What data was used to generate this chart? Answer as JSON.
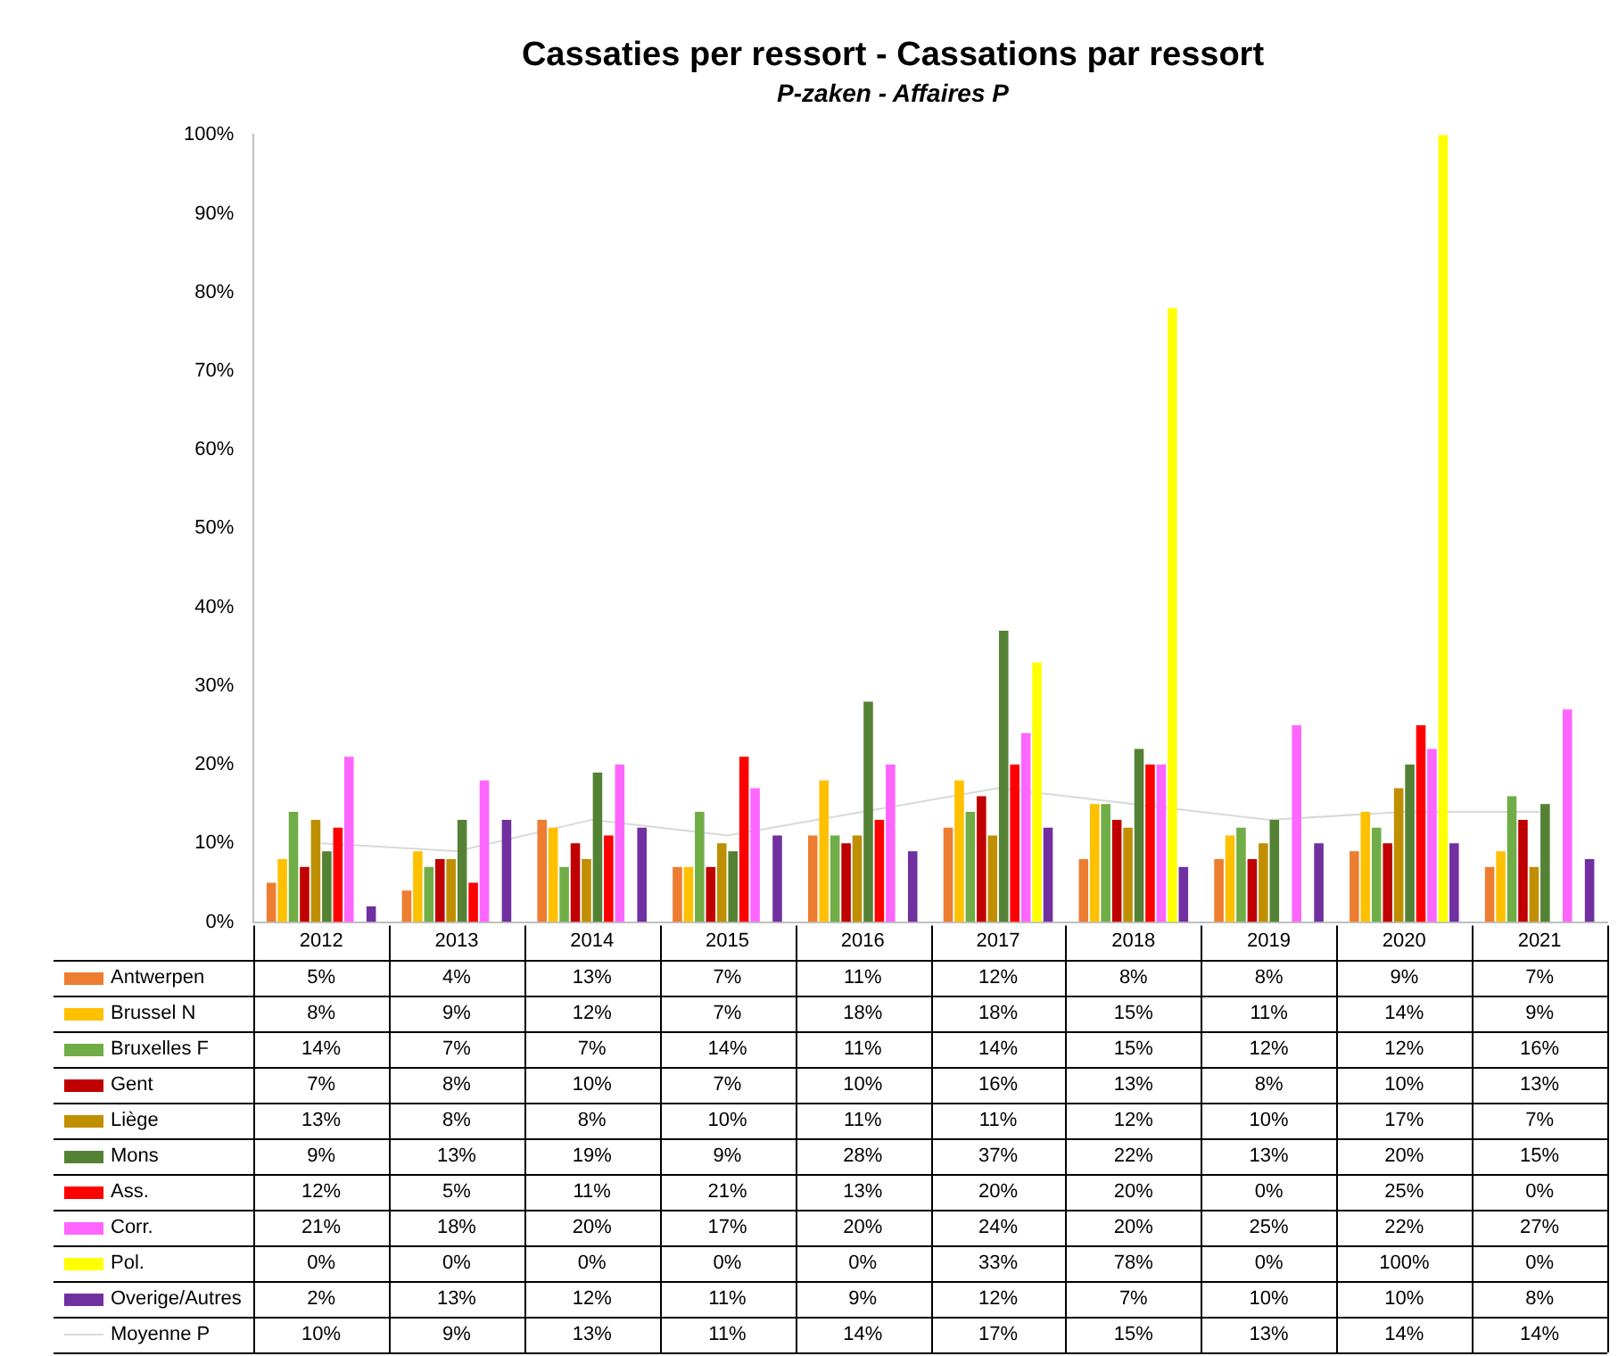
{
  "chart_data": {
    "type": "bar",
    "title": "Cassaties per ressort - Cassations par ressort",
    "subtitle": "P-zaken - Affaires P",
    "categories": [
      "2012",
      "2013",
      "2014",
      "2015",
      "2016",
      "2017",
      "2018",
      "2019",
      "2020",
      "2021"
    ],
    "ylim": [
      0,
      100
    ],
    "yticks": [
      {
        "value": 0,
        "label": "0%"
      },
      {
        "value": 10,
        "label": "10%"
      },
      {
        "value": 20,
        "label": "20%"
      },
      {
        "value": 30,
        "label": "30%"
      },
      {
        "value": 40,
        "label": "40%"
      },
      {
        "value": 50,
        "label": "50%"
      },
      {
        "value": 60,
        "label": "60%"
      },
      {
        "value": 70,
        "label": "70%"
      },
      {
        "value": 80,
        "label": "80%"
      },
      {
        "value": 90,
        "label": "90%"
      },
      {
        "value": 100,
        "label": "100%"
      }
    ],
    "grid": false,
    "legend": "bottom",
    "series": [
      {
        "name": "Antwerpen",
        "color": "#ed7d31",
        "values": [
          5,
          4,
          13,
          7,
          11,
          12,
          8,
          8,
          9,
          7
        ],
        "value_labels": [
          "5%",
          "4%",
          "13%",
          "7%",
          "11%",
          "12%",
          "8%",
          "8%",
          "9%",
          "7%"
        ]
      },
      {
        "name": "Brussel N",
        "color": "#ffc000",
        "values": [
          8,
          9,
          12,
          7,
          18,
          18,
          15,
          11,
          14,
          9
        ],
        "value_labels": [
          "8%",
          "9%",
          "12%",
          "7%",
          "18%",
          "18%",
          "15%",
          "11%",
          "14%",
          "9%"
        ]
      },
      {
        "name": "Bruxelles F",
        "color": "#70ad47",
        "values": [
          14,
          7,
          7,
          14,
          11,
          14,
          15,
          12,
          12,
          16
        ],
        "value_labels": [
          "14%",
          "7%",
          "7%",
          "14%",
          "11%",
          "14%",
          "15%",
          "12%",
          "12%",
          "16%"
        ]
      },
      {
        "name": "Gent",
        "color": "#c00000",
        "values": [
          7,
          8,
          10,
          7,
          10,
          16,
          13,
          8,
          10,
          13
        ],
        "value_labels": [
          "7%",
          "8%",
          "10%",
          "7%",
          "10%",
          "16%",
          "13%",
          "8%",
          "10%",
          "13%"
        ]
      },
      {
        "name": "Liège",
        "color": "#bf8f00",
        "values": [
          13,
          8,
          8,
          10,
          11,
          11,
          12,
          10,
          17,
          7
        ],
        "value_labels": [
          "13%",
          "8%",
          "8%",
          "10%",
          "11%",
          "11%",
          "12%",
          "10%",
          "17%",
          "7%"
        ]
      },
      {
        "name": "Mons",
        "color": "#548235",
        "values": [
          9,
          13,
          19,
          9,
          28,
          37,
          22,
          13,
          20,
          15
        ],
        "value_labels": [
          "9%",
          "13%",
          "19%",
          "9%",
          "28%",
          "37%",
          "22%",
          "13%",
          "20%",
          "15%"
        ]
      },
      {
        "name": "Ass.",
        "color": "#ff0000",
        "values": [
          12,
          5,
          11,
          21,
          13,
          20,
          20,
          0,
          25,
          0
        ],
        "value_labels": [
          "12%",
          "5%",
          "11%",
          "21%",
          "13%",
          "20%",
          "20%",
          "0%",
          "25%",
          "0%"
        ]
      },
      {
        "name": "Corr.",
        "color": "#ff66ff",
        "values": [
          21,
          18,
          20,
          17,
          20,
          24,
          20,
          25,
          22,
          27
        ],
        "value_labels": [
          "21%",
          "18%",
          "20%",
          "17%",
          "20%",
          "24%",
          "20%",
          "25%",
          "22%",
          "27%"
        ]
      },
      {
        "name": "Pol.",
        "color": "#ffff00",
        "values": [
          0,
          0,
          0,
          0,
          0,
          33,
          78,
          0,
          100,
          0
        ],
        "value_labels": [
          "0%",
          "0%",
          "0%",
          "0%",
          "0%",
          "33%",
          "78%",
          "0%",
          "100%",
          "0%"
        ]
      },
      {
        "name": "Overige/Autres",
        "color": "#7030a0",
        "values": [
          2,
          13,
          12,
          11,
          9,
          12,
          7,
          10,
          10,
          8
        ],
        "value_labels": [
          "2%",
          "13%",
          "12%",
          "11%",
          "9%",
          "12%",
          "7%",
          "10%",
          "10%",
          "8%"
        ]
      },
      {
        "name": "Moyenne P",
        "color": "#d9d9d9",
        "type": "line",
        "marker": "none",
        "line_style": "solid",
        "values": [
          10,
          9,
          13,
          11,
          14,
          17,
          15,
          13,
          14,
          14
        ],
        "value_labels": [
          "10%",
          "9%",
          "13%",
          "11%",
          "14%",
          "17%",
          "15%",
          "13%",
          "14%",
          "14%"
        ]
      }
    ]
  }
}
